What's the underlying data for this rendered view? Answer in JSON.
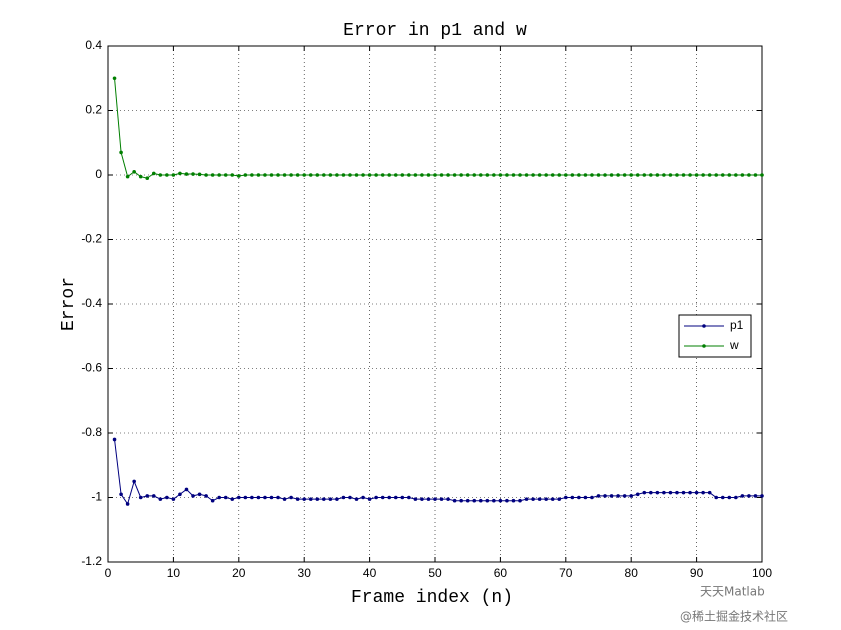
{
  "chart_data": {
    "type": "line",
    "title": "Error in p1 and w",
    "xlabel": "Frame index (n)",
    "ylabel": "Error",
    "x": [
      1,
      2,
      3,
      4,
      5,
      6,
      7,
      8,
      9,
      10,
      11,
      12,
      13,
      14,
      15,
      16,
      17,
      18,
      19,
      20,
      21,
      22,
      23,
      24,
      25,
      26,
      27,
      28,
      29,
      30,
      31,
      32,
      33,
      34,
      35,
      36,
      37,
      38,
      39,
      40,
      41,
      42,
      43,
      44,
      45,
      46,
      47,
      48,
      49,
      50,
      51,
      52,
      53,
      54,
      55,
      56,
      57,
      58,
      59,
      60,
      61,
      62,
      63,
      64,
      65,
      66,
      67,
      68,
      69,
      70,
      71,
      72,
      73,
      74,
      75,
      76,
      77,
      78,
      79,
      80,
      81,
      82,
      83,
      84,
      85,
      86,
      87,
      88,
      89,
      90,
      91,
      92,
      93,
      94,
      95,
      96,
      97,
      98,
      99,
      100
    ],
    "series": [
      {
        "name": "p1",
        "color": "#00007f",
        "values": [
          -0.82,
          -0.99,
          -1.02,
          -0.95,
          -1.0,
          -0.995,
          -0.995,
          -1.005,
          -1.0,
          -1.005,
          -0.99,
          -0.975,
          -0.995,
          -0.99,
          -0.995,
          -1.01,
          -1.0,
          -1.0,
          -1.005,
          -1.0,
          -1.0,
          -1.0,
          -1.0,
          -1.0,
          -1.0,
          -1.0,
          -1.005,
          -1.0,
          -1.005,
          -1.005,
          -1.005,
          -1.005,
          -1.005,
          -1.005,
          -1.005,
          -1.0,
          -1.0,
          -1.005,
          -1.0,
          -1.005,
          -1.0,
          -1.0,
          -1.0,
          -1.0,
          -1.0,
          -1.0,
          -1.005,
          -1.005,
          -1.005,
          -1.005,
          -1.005,
          -1.005,
          -1.01,
          -1.01,
          -1.01,
          -1.01,
          -1.01,
          -1.01,
          -1.01,
          -1.01,
          -1.01,
          -1.01,
          -1.01,
          -1.005,
          -1.005,
          -1.005,
          -1.005,
          -1.005,
          -1.005,
          -1.0,
          -1.0,
          -1.0,
          -1.0,
          -1.0,
          -0.995,
          -0.995,
          -0.995,
          -0.995,
          -0.995,
          -0.995,
          -0.99,
          -0.985,
          -0.985,
          -0.985,
          -0.985,
          -0.985,
          -0.985,
          -0.985,
          -0.985,
          -0.985,
          -0.985,
          -0.985,
          -1.0,
          -1.0,
          -1.0,
          -1.0,
          -0.995,
          -0.995,
          -0.995,
          -0.995
        ]
      },
      {
        "name": "w",
        "color": "#007f00",
        "values": [
          0.3,
          0.07,
          -0.005,
          0.01,
          -0.005,
          -0.01,
          0.005,
          0,
          0,
          0,
          0.005,
          0.003,
          0.003,
          0.002,
          0,
          0,
          0,
          0,
          0,
          -0.003,
          0,
          0,
          0,
          0,
          0,
          0,
          0,
          0,
          0,
          0,
          0,
          0,
          0,
          0,
          0,
          0,
          0,
          0,
          0,
          0,
          0,
          0,
          0,
          0,
          0,
          0,
          0,
          0,
          0,
          0,
          0,
          0,
          0,
          0,
          0,
          0,
          0,
          0,
          0,
          0,
          0,
          0,
          0,
          0,
          0,
          0,
          0,
          0,
          0,
          0,
          0,
          0,
          0,
          0,
          0,
          0,
          0,
          0,
          0,
          0,
          0,
          0,
          0,
          0,
          0,
          0,
          0,
          0,
          0,
          0,
          0,
          0,
          0,
          0,
          0,
          0,
          0,
          0,
          0,
          0
        ]
      }
    ],
    "xlim": [
      0,
      100
    ],
    "xticks": [
      0,
      10,
      20,
      30,
      40,
      50,
      60,
      70,
      80,
      90,
      100
    ],
    "ylim": [
      -1.2,
      0.4
    ],
    "yticks": [
      -1.2,
      -1,
      -0.8,
      -0.6,
      -0.4,
      -0.2,
      0,
      0.2,
      0.4
    ],
    "grid": true,
    "legend": "right",
    "annotations": [
      "天天Matlab",
      "@稀土掘金技术社区"
    ]
  }
}
